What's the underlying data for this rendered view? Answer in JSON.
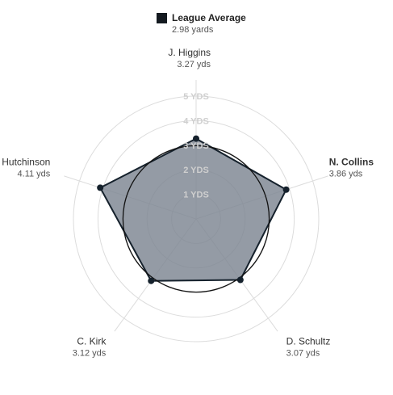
{
  "legend": {
    "label": "League Average",
    "value_text": "2.98 yards",
    "swatch_color": "#141a20"
  },
  "chart_data": {
    "type": "radar",
    "unit": "YDS",
    "r_min": 0,
    "r_max": 5,
    "rings": [
      1,
      2,
      3,
      4,
      5
    ],
    "ring_labels": [
      "1 YDS",
      "2 YDS",
      "3 YDS",
      "4 YDS",
      "5 YDS"
    ],
    "reference_value": 2.98,
    "axes": [
      {
        "name": "N. Collins",
        "value": 3.86,
        "value_text": "3.86 yds",
        "highlight": true
      },
      {
        "name": "D. Schultz",
        "value": 3.07,
        "value_text": "3.07 yds",
        "highlight": false
      },
      {
        "name": "C. Kirk",
        "value": 3.12,
        "value_text": "3.12 yds",
        "highlight": false
      },
      {
        "name": "Hutchinson",
        "value": 4.11,
        "value_text": "4.11 yds",
        "highlight": false
      },
      {
        "name": "J. Higgins",
        "value": 3.27,
        "value_text": "3.27 yds",
        "highlight": false
      }
    ],
    "colors": {
      "fill": "#7d8591",
      "stroke": "#15212c",
      "grid": "#dcdcdc",
      "ring_label": "#cfcfcf",
      "reference": "#111111"
    }
  }
}
